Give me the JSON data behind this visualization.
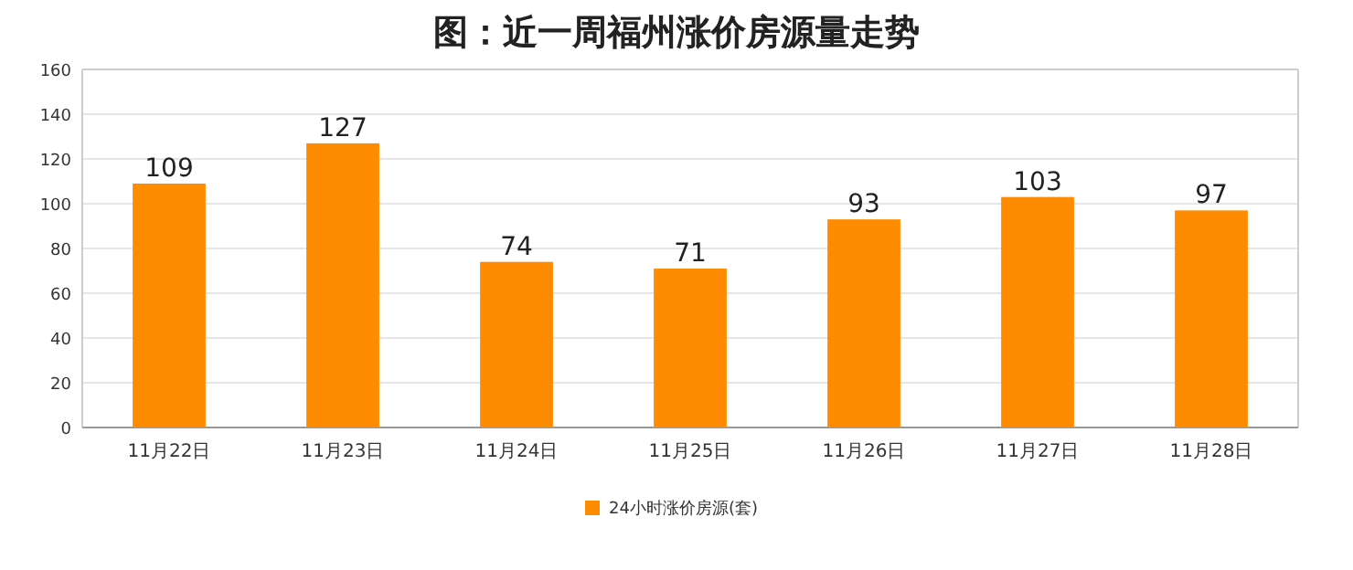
{
  "chart_data": {
    "type": "bar",
    "title": "图：近一周福州涨价房源量走势",
    "categories": [
      "11月22日",
      "11月23日",
      "11月24日",
      "11月25日",
      "11月26日",
      "11月27日",
      "11月28日"
    ],
    "series": [
      {
        "name": "24小时涨价房源(套)",
        "color": "#ff8c00",
        "values": [
          109,
          127,
          74,
          71,
          93,
          103,
          97
        ]
      }
    ],
    "ylim": [
      0,
      160
    ],
    "yticks": [
      0,
      20,
      40,
      60,
      80,
      100,
      120,
      140,
      160
    ],
    "grid": "y",
    "legend": "bottom",
    "data_labels": true
  }
}
